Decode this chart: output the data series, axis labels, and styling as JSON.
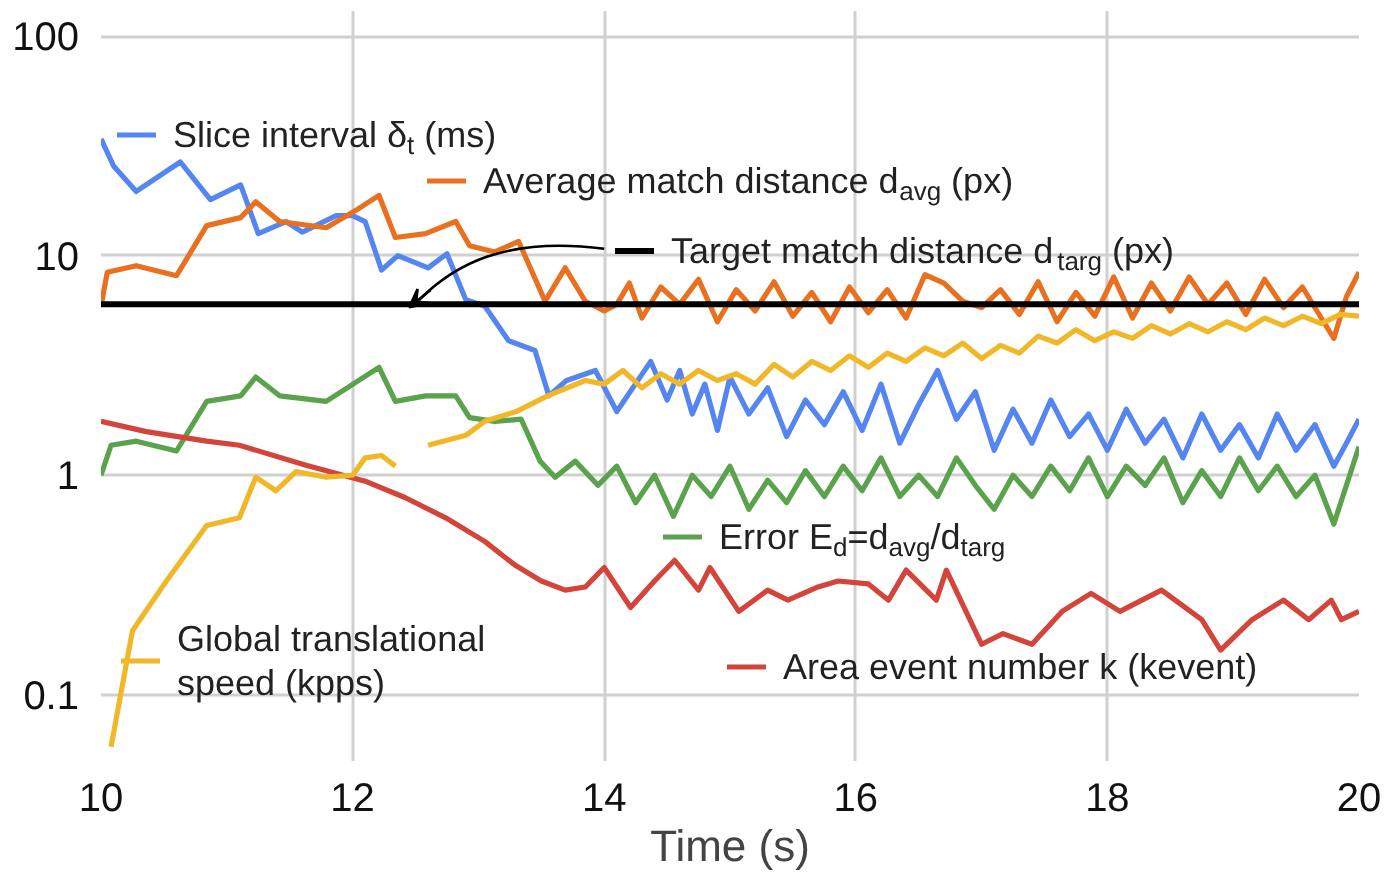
{
  "chart_data": {
    "type": "line",
    "xlabel": "Time (s)",
    "log": "y",
    "grid": true,
    "legend": "bottom left",
    "xlim": [
      10,
      20
    ],
    "xticks": [
      10,
      12,
      14,
      16,
      18,
      20
    ],
    "ylim": [
      0.05,
      130
    ],
    "yticks": [
      0.1,
      1,
      10,
      100
    ],
    "series": [
      {
        "name": "Slice interval δ$_{t}$ (ms)",
        "color": "#5585f0",
        "x": [
          10.0,
          10.1,
          10.28,
          10.63,
          10.87,
          11.11,
          11.25,
          11.47,
          11.6,
          11.87,
          12.0,
          12.1,
          12.23,
          12.36,
          12.6,
          12.75,
          12.9,
          13.05,
          13.24,
          13.45,
          13.56,
          13.7,
          13.93,
          14.1,
          14.37,
          14.5,
          14.6,
          14.7,
          14.8,
          14.9,
          15.0,
          15.15,
          15.3,
          15.45,
          15.6,
          15.75,
          15.9,
          16.05,
          16.2,
          16.35,
          16.5,
          16.65,
          16.8,
          16.95,
          17.1,
          17.25,
          17.4,
          17.55,
          17.7,
          17.85,
          18.0,
          18.15,
          18.3,
          18.45,
          18.6,
          18.75,
          18.9,
          19.05,
          19.2,
          19.35,
          19.5,
          19.65,
          19.8,
          19.9,
          20.0
        ],
        "values": [
          34,
          25.6,
          19.6,
          26.7,
          18,
          21,
          12.6,
          14.3,
          12.8,
          15.2,
          15.2,
          14.3,
          8.6,
          10,
          8.8,
          10.2,
          6.3,
          5.9,
          4.1,
          3.7,
          2.3,
          2.7,
          3,
          1.95,
          3.3,
          2.2,
          3.0,
          1.9,
          2.6,
          1.6,
          2.8,
          1.9,
          2.5,
          1.5,
          2.2,
          1.7,
          2.4,
          1.6,
          2.6,
          1.4,
          2.1,
          3.0,
          1.8,
          2.4,
          1.3,
          2.0,
          1.4,
          2.2,
          1.5,
          1.9,
          1.3,
          2.0,
          1.4,
          1.8,
          1.2,
          1.9,
          1.3,
          1.7,
          1.2,
          1.9,
          1.3,
          1.7,
          1.1,
          1.4,
          1.8
        ]
      },
      {
        "name": "Average match distance d$_{avg}$ (px)",
        "color": "#e8701e",
        "x": [
          10.0,
          10.05,
          10.28,
          10.6,
          10.84,
          11.11,
          11.23,
          11.42,
          11.79,
          12.02,
          12.21,
          12.34,
          12.58,
          12.82,
          12.93,
          13.13,
          13.32,
          13.53,
          13.69,
          13.85,
          14.0,
          14.1,
          14.2,
          14.3,
          14.45,
          14.6,
          14.75,
          14.9,
          15.05,
          15.2,
          15.35,
          15.5,
          15.65,
          15.8,
          15.95,
          16.1,
          16.25,
          16.4,
          16.55,
          16.7,
          16.85,
          17.0,
          17.15,
          17.3,
          17.45,
          17.6,
          17.75,
          17.9,
          18.05,
          18.2,
          18.35,
          18.5,
          18.65,
          18.8,
          18.95,
          19.1,
          19.25,
          19.4,
          19.55,
          19.7,
          19.8,
          19.9,
          20.0
        ],
        "values": [
          5.9,
          8.4,
          9,
          8.1,
          13.7,
          14.9,
          17.6,
          14.3,
          13.4,
          16,
          18.8,
          12.1,
          12.6,
          14.3,
          11.1,
          10.4,
          11.6,
          6.2,
          8.8,
          6.2,
          5.6,
          6.0,
          7.5,
          5.2,
          7.2,
          6.0,
          7.8,
          5.0,
          7.0,
          5.6,
          7.6,
          5.3,
          6.8,
          5.0,
          7.2,
          5.5,
          7.0,
          5.2,
          8.2,
          7.5,
          6.2,
          5.8,
          7.0,
          5.4,
          7.6,
          5.0,
          6.8,
          5.3,
          8.0,
          5.2,
          7.5,
          5.6,
          8.0,
          6.0,
          7.5,
          5.4,
          7.8,
          5.8,
          7.2,
          5.2,
          4.2,
          6.5,
          8.4
        ]
      },
      {
        "name": "Target match distance d$_{targ}$ (px)",
        "color": "#000000",
        "x": [
          10,
          20
        ],
        "values": [
          6,
          6
        ]
      },
      {
        "name": "Error E$_{d}$=d$_{avg}$/d$_{targ}$",
        "color": "#5aa34c",
        "x": [
          10.0,
          10.08,
          10.28,
          10.6,
          10.84,
          11.11,
          11.23,
          11.42,
          11.79,
          12.21,
          12.34,
          12.58,
          12.82,
          12.93,
          13.13,
          13.34,
          13.49,
          13.61,
          13.77,
          13.95,
          14.1,
          14.25,
          14.4,
          14.55,
          14.7,
          14.85,
          15.0,
          15.15,
          15.3,
          15.45,
          15.6,
          15.75,
          15.9,
          16.05,
          16.2,
          16.35,
          16.5,
          16.65,
          16.8,
          16.95,
          17.1,
          17.25,
          17.4,
          17.55,
          17.7,
          17.85,
          18.0,
          18.15,
          18.3,
          18.45,
          18.6,
          18.75,
          18.9,
          19.05,
          19.2,
          19.35,
          19.5,
          19.65,
          19.8,
          19.9,
          20.0
        ],
        "values": [
          1.0,
          1.37,
          1.43,
          1.29,
          2.17,
          2.3,
          2.8,
          2.3,
          2.17,
          3.1,
          2.17,
          2.3,
          2.3,
          1.83,
          1.76,
          1.8,
          1.16,
          0.98,
          1.16,
          0.9,
          1.1,
          0.75,
          1.0,
          0.65,
          1.0,
          0.8,
          1.1,
          0.7,
          0.95,
          0.75,
          1.05,
          0.8,
          1.1,
          0.85,
          1.2,
          0.8,
          1.0,
          0.8,
          1.2,
          0.9,
          0.7,
          1.0,
          0.8,
          1.1,
          0.85,
          1.2,
          0.8,
          1.1,
          0.9,
          1.2,
          0.75,
          1.05,
          0.8,
          1.2,
          0.85,
          1.1,
          0.8,
          1.0,
          0.6,
          0.9,
          1.35
        ]
      },
      {
        "name": "Area event number k (kevent)",
        "color": "#d3443a",
        "x": [
          10.0,
          10.36,
          10.84,
          11.1,
          11.63,
          12.1,
          12.42,
          12.74,
          13.05,
          13.29,
          13.5,
          13.69,
          13.85,
          14.0,
          14.21,
          14.4,
          14.56,
          14.75,
          14.84,
          15.07,
          15.3,
          15.46,
          15.7,
          15.86,
          16.1,
          16.26,
          16.4,
          16.64,
          16.72,
          17.0,
          17.17,
          17.4,
          17.64,
          17.87,
          18.1,
          18.43,
          18.75,
          18.9,
          19.15,
          19.4,
          19.6,
          19.78,
          19.86,
          20.0
        ],
        "values": [
          1.76,
          1.58,
          1.43,
          1.37,
          1.11,
          0.94,
          0.79,
          0.64,
          0.5,
          0.39,
          0.33,
          0.3,
          0.31,
          0.38,
          0.25,
          0.33,
          0.41,
          0.3,
          0.38,
          0.24,
          0.3,
          0.27,
          0.31,
          0.33,
          0.32,
          0.27,
          0.37,
          0.27,
          0.37,
          0.17,
          0.19,
          0.17,
          0.24,
          0.29,
          0.24,
          0.3,
          0.22,
          0.16,
          0.22,
          0.27,
          0.22,
          0.27,
          0.22,
          0.24
        ]
      },
      {
        "name": "Global translational speed (kpps)",
        "color": "#f0b829",
        "x": [
          10.08,
          10.25,
          10.52,
          10.84,
          11.1,
          11.23,
          11.39,
          11.55,
          11.79,
          12.0,
          12.1,
          12.23,
          12.34,
          12.45,
          12.6,
          12.9,
          13.05,
          13.3,
          13.55,
          13.85,
          14.0,
          14.15,
          14.3,
          14.45,
          14.6,
          14.75,
          14.9,
          15.05,
          15.2,
          15.35,
          15.5,
          15.65,
          15.8,
          15.95,
          16.1,
          16.25,
          16.4,
          16.55,
          16.7,
          16.85,
          17.0,
          17.15,
          17.3,
          17.45,
          17.6,
          17.75,
          17.9,
          18.05,
          18.2,
          18.35,
          18.5,
          18.65,
          18.8,
          18.95,
          19.1,
          19.25,
          19.4,
          19.55,
          19.7,
          19.85,
          20.0
        ],
        "values": [
          0.058,
          0.196,
          0.33,
          0.59,
          0.64,
          0.98,
          0.85,
          1.04,
          0.98,
          1.0,
          1.2,
          1.23,
          1.1,
          null,
          1.37,
          1.52,
          1.76,
          1.95,
          2.3,
          2.7,
          2.6,
          3.0,
          2.5,
          2.9,
          2.6,
          3.0,
          2.7,
          2.9,
          2.6,
          3.2,
          2.8,
          3.3,
          3.0,
          3.5,
          3.1,
          3.6,
          3.3,
          3.8,
          3.5,
          4.0,
          3.4,
          3.9,
          3.6,
          4.3,
          4.0,
          4.6,
          4.1,
          4.5,
          4.2,
          4.8,
          4.4,
          4.9,
          4.5,
          5.0,
          4.6,
          5.2,
          4.8,
          5.3,
          4.9,
          5.4,
          5.3
        ]
      }
    ]
  }
}
